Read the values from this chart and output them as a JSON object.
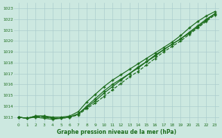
{
  "x": [
    0,
    1,
    2,
    3,
    4,
    5,
    6,
    7,
    8,
    9,
    10,
    11,
    12,
    13,
    14,
    15,
    16,
    17,
    18,
    19,
    20,
    21,
    22,
    23
  ],
  "line1": [
    1013.0,
    1012.9,
    1013.1,
    1013.1,
    1013.0,
    1013.0,
    1013.1,
    1013.5,
    1014.4,
    1015.1,
    1015.8,
    1016.4,
    1016.9,
    1017.4,
    1017.9,
    1018.4,
    1018.9,
    1019.4,
    1019.9,
    1020.5,
    1021.2,
    1021.8,
    1022.3,
    1022.7
  ],
  "line2": [
    1013.0,
    1012.9,
    1013.1,
    1013.1,
    1012.9,
    1012.9,
    1013.0,
    1013.3,
    1013.9,
    1014.5,
    1015.2,
    1015.8,
    1016.4,
    1017.0,
    1017.5,
    1018.1,
    1018.6,
    1019.2,
    1019.7,
    1020.2,
    1020.8,
    1021.4,
    1022.0,
    1022.5
  ],
  "line3": [
    1013.0,
    1012.9,
    1013.0,
    1013.0,
    1012.9,
    1012.9,
    1013.0,
    1013.2,
    1013.8,
    1014.3,
    1014.9,
    1015.5,
    1016.1,
    1016.7,
    1017.2,
    1017.8,
    1018.4,
    1019.0,
    1019.5,
    1020.0,
    1020.6,
    1021.2,
    1021.8,
    1022.4
  ],
  "line4": [
    1013.0,
    1012.9,
    1013.0,
    1012.9,
    1012.8,
    1012.9,
    1013.0,
    1013.3,
    1014.0,
    1014.7,
    1015.4,
    1016.0,
    1016.5,
    1017.0,
    1017.6,
    1018.1,
    1018.7,
    1019.2,
    1019.7,
    1020.2,
    1020.7,
    1021.3,
    1021.9,
    1022.5
  ],
  "ylim": [
    1012.5,
    1023.5
  ],
  "yticks": [
    1013,
    1014,
    1015,
    1016,
    1017,
    1018,
    1019,
    1020,
    1021,
    1022,
    1023
  ],
  "line_color": "#1a6b1a",
  "bg_color": "#cce8e0",
  "grid_color": "#aacccc",
  "xlabel": "Graphe pression niveau de la mer (hPa)",
  "xlabel_color": "#1a6b1a",
  "markersize": 3.5,
  "figsize": [
    3.2,
    2.0
  ],
  "dpi": 100
}
